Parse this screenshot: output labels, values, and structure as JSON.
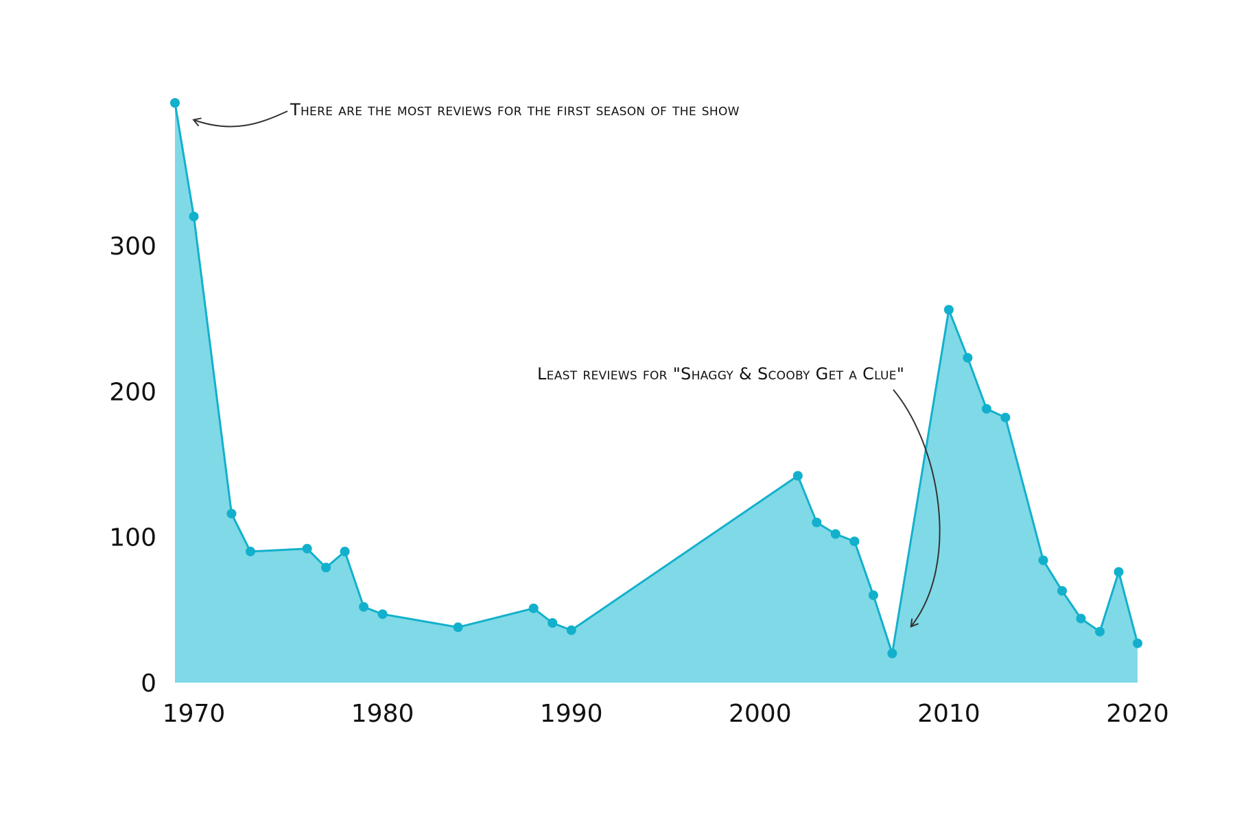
{
  "colors": {
    "line": "#12b0cc",
    "area": "#80d9e6",
    "marker": "#12b0cc",
    "text": "#111111",
    "arrow": "#333333"
  },
  "chart_data": {
    "type": "area",
    "title": "",
    "xlabel": "",
    "ylabel": "",
    "xlim": [
      1968.5,
      2020.5
    ],
    "ylim": [
      0,
      400
    ],
    "grid": false,
    "x_ticks": [
      1970,
      1980,
      1990,
      2000,
      2010,
      2020
    ],
    "y_ticks": [
      0,
      100,
      200,
      300
    ],
    "series": [
      {
        "x": [
          1969,
          1970,
          1972,
          1973,
          1976,
          1977,
          1978,
          1979,
          1980,
          1984,
          1988,
          1989,
          1990,
          2002,
          2003,
          2004,
          2005,
          2006,
          2007,
          2010,
          2011,
          2012,
          2013,
          2015,
          2016,
          2017,
          2018,
          2019,
          2020
        ],
        "values": [
          398,
          320,
          116,
          90,
          92,
          79,
          90,
          52,
          47,
          38,
          51,
          41,
          36,
          142,
          110,
          102,
          97,
          60,
          20,
          256,
          223,
          188,
          182,
          84,
          63,
          44,
          35,
          76,
          27
        ]
      }
    ],
    "annotations": [
      {
        "text": "There are the most reviews for the first season of the show",
        "target": [
          1969,
          398
        ]
      },
      {
        "text": "Least reviews for \"Shaggy & Scooby Get a Clue\"",
        "target": [
          2007,
          20
        ]
      }
    ]
  }
}
